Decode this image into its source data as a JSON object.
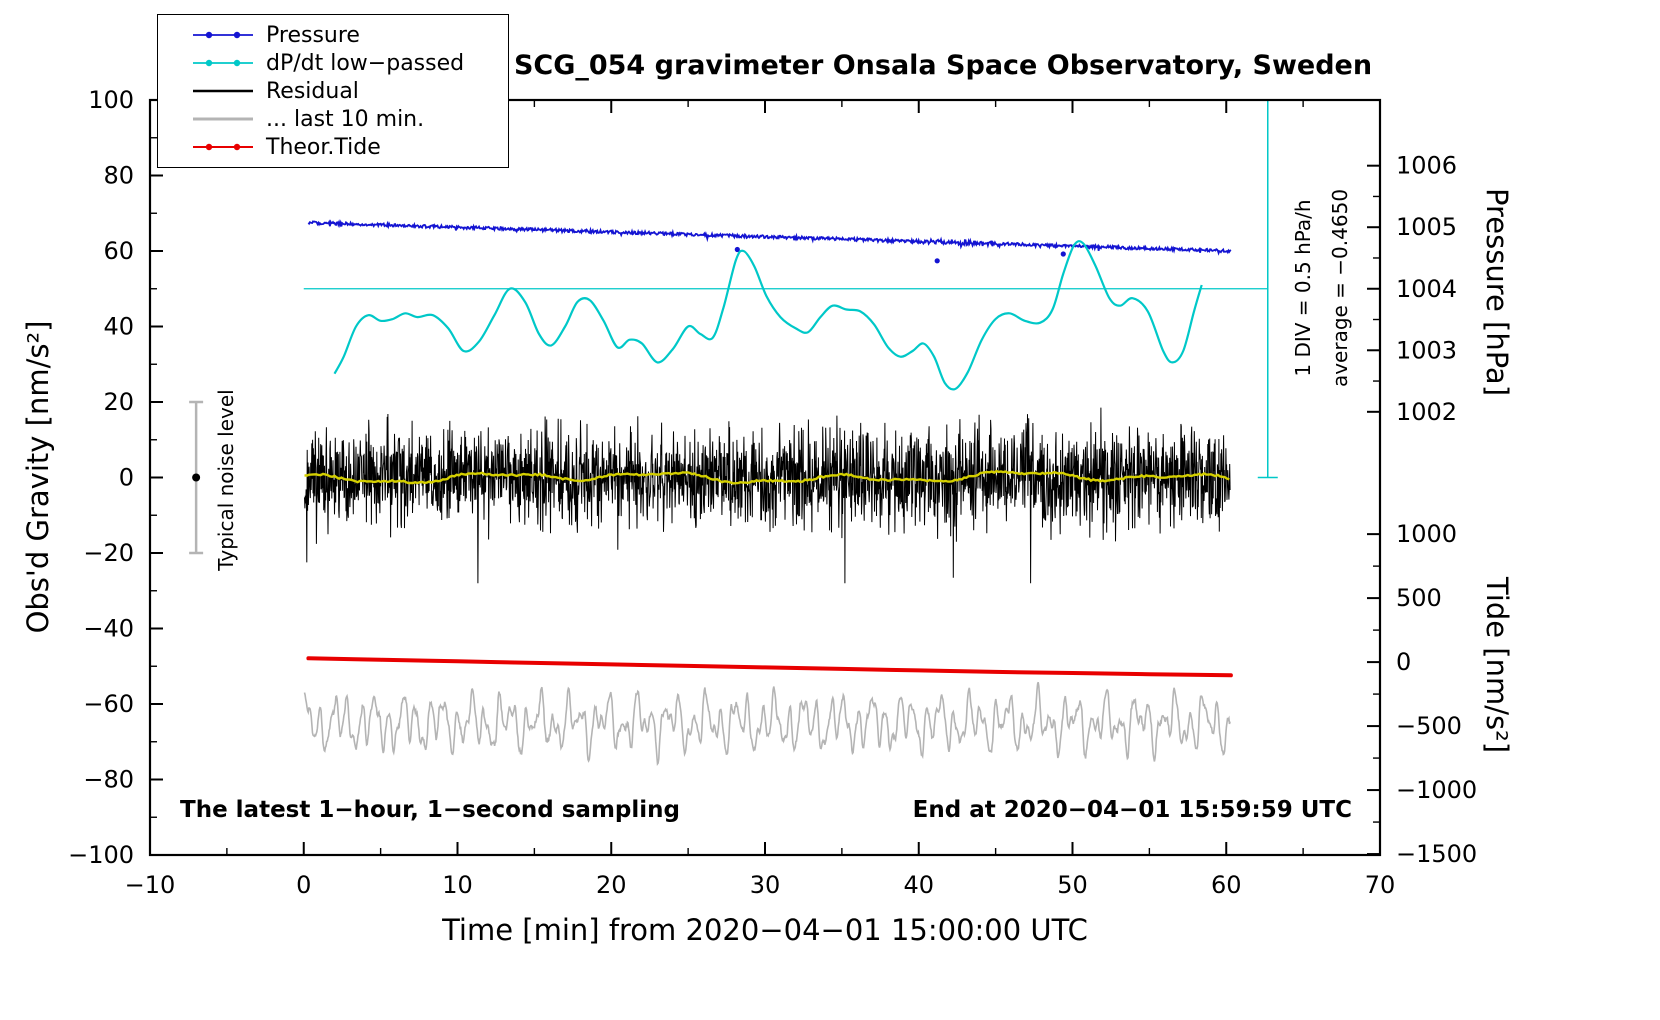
{
  "title": "SCG_054 gravimeter Onsala Space Observatory, Sweden",
  "notes": {
    "left": "The latest 1−hour, 1−second sampling",
    "right": "End at 2020−04−01 15:59:59 UTC"
  },
  "annotations": {
    "div": "1 DIV = 0.5 hPa/h",
    "average": "average = −0.4650",
    "noise": "Typical noise level"
  },
  "legend": [
    {
      "key": "pressure",
      "label": "Pressure",
      "color": "#1414d2",
      "width": 1.8,
      "dots": true
    },
    {
      "key": "dpdt",
      "label": "dP/dt low−passed",
      "color": "#00c8c8",
      "width": 1.8,
      "dots": true
    },
    {
      "key": "residual",
      "label": "Residual",
      "color": "#000000",
      "width": 2.6,
      "dots": false
    },
    {
      "key": "last10",
      "label": "... last 10 min.",
      "color": "#b4b4b4",
      "width": 3,
      "dots": false
    },
    {
      "key": "tide",
      "label": "Theor.Tide",
      "color": "#e80000",
      "width": 2,
      "dots": true
    }
  ],
  "chart_data": {
    "type": "line",
    "title": "SCG_054 gravimeter Onsala Space Observatory, Sweden",
    "seed": 20200401,
    "x_axis": {
      "label": "Time [min] from 2020−04−01 15:00:00 UTC",
      "range": [
        -10,
        70
      ],
      "major_ticks": [
        -10,
        0,
        10,
        20,
        30,
        40,
        50,
        60,
        70
      ],
      "minor_step": 5
    },
    "y_axis_left": {
      "label": "Obs'd Gravity [nm/s²]",
      "range": [
        -100,
        100
      ],
      "major_step": 20,
      "minor_step": 10
    },
    "y_axis_pressure": {
      "label": "Pressure [hPa]",
      "major_ticks": [
        1002,
        1003,
        1004,
        1005,
        1006
      ],
      "minor_ticks": [
        1002.5,
        1003.5,
        1004.5,
        1005.5
      ],
      "ref": {
        "value": 1004,
        "gravity": 50
      },
      "gravity_per_unit": 16.3
    },
    "y_axis_tide": {
      "label": "Tide [nm/s²]",
      "major_ticks": [
        -1500,
        -1000,
        -500,
        0,
        500,
        1000
      ],
      "minor_ticks": [
        -1250,
        -750,
        -250,
        250,
        750
      ],
      "ref": {
        "value": 0,
        "gravity": -48.9
      },
      "gravity_per_unit": 0.0339
    },
    "series": {
      "pressure": {
        "name": "Pressure",
        "color": "#1414d2",
        "t_range": [
          0.3,
          60.3
        ],
        "start_gravity": 67.5,
        "end_gravity": 60.0,
        "start_hPa": 1005.1,
        "end_hPa": 1004.6,
        "noise": 0.4,
        "outliers_t_gravity": [
          [
            28.2,
            60.4
          ],
          [
            41.2,
            57.4
          ],
          [
            49.4,
            59.2
          ]
        ]
      },
      "dpdt_lowpassed": {
        "name": "dP/dt low−passed",
        "color": "#00c8c8",
        "reference_gravity": 50,
        "average_hPa_per_h": -0.465,
        "div_hPa_per_h": 0.5,
        "scale_bar": {
          "t": 62.7,
          "gravity_top": 100,
          "gravity_bottom": 0
        },
        "points_t_gravity": [
          [
            2.0,
            27.5
          ],
          [
            2.6,
            32
          ],
          [
            3.4,
            40
          ],
          [
            4.2,
            43
          ],
          [
            5.0,
            41.5
          ],
          [
            5.8,
            42
          ],
          [
            6.6,
            43.5
          ],
          [
            7.4,
            42.5
          ],
          [
            8.4,
            43
          ],
          [
            9.4,
            39.5
          ],
          [
            10.4,
            33.5
          ],
          [
            11.4,
            36
          ],
          [
            12.4,
            43
          ],
          [
            13.4,
            50
          ],
          [
            14.4,
            46.5
          ],
          [
            15.3,
            38
          ],
          [
            16.1,
            35
          ],
          [
            17.0,
            40
          ],
          [
            17.8,
            46.5
          ],
          [
            18.6,
            47
          ],
          [
            19.5,
            41.5
          ],
          [
            20.4,
            34.5
          ],
          [
            21.2,
            36.5
          ],
          [
            22.0,
            35.5
          ],
          [
            23.0,
            30.5
          ],
          [
            24.0,
            34
          ],
          [
            25.0,
            40
          ],
          [
            25.8,
            38
          ],
          [
            26.6,
            37
          ],
          [
            27.3,
            45
          ],
          [
            28.1,
            57.5
          ],
          [
            28.6,
            60
          ],
          [
            29.3,
            56
          ],
          [
            30.1,
            48
          ],
          [
            31.0,
            42.5
          ],
          [
            32.0,
            39.5
          ],
          [
            32.8,
            38.5
          ],
          [
            33.6,
            42.5
          ],
          [
            34.4,
            45.5
          ],
          [
            35.3,
            44.5
          ],
          [
            36.2,
            44
          ],
          [
            37.1,
            40.5
          ],
          [
            38.0,
            34.5
          ],
          [
            38.8,
            32
          ],
          [
            39.6,
            33.5
          ],
          [
            40.3,
            35.5
          ],
          [
            41.0,
            32
          ],
          [
            41.7,
            25
          ],
          [
            42.4,
            23.5
          ],
          [
            43.2,
            28
          ],
          [
            44.1,
            36.5
          ],
          [
            45.0,
            42
          ],
          [
            45.9,
            43.5
          ],
          [
            46.9,
            41.5
          ],
          [
            47.9,
            41
          ],
          [
            48.7,
            44.5
          ],
          [
            49.4,
            54
          ],
          [
            50.1,
            61.5
          ],
          [
            50.7,
            62
          ],
          [
            51.5,
            56
          ],
          [
            52.4,
            47.5
          ],
          [
            53.1,
            45.5
          ],
          [
            53.9,
            47.5
          ],
          [
            54.9,
            44
          ],
          [
            55.9,
            33.5
          ],
          [
            56.5,
            30.5
          ],
          [
            57.2,
            33.5
          ],
          [
            57.9,
            44
          ],
          [
            58.4,
            51
          ]
        ]
      },
      "residual": {
        "name": "Residual",
        "color": "#000000",
        "t_range": [
          0.05,
          60.25
        ],
        "mean": 0,
        "sigma": 6.5,
        "spike_prob": 0.012,
        "max_abs": 28,
        "smooth_color": "#d4cf00",
        "smooth_amplitude": 1.5
      },
      "residual_last10": {
        "name": "... last 10 min.",
        "color": "#b4b4b4",
        "t_range": [
          0.05,
          60.25
        ],
        "center_gravity": -65,
        "amplitude": 10
      },
      "theor_tide": {
        "name": "Theor.Tide",
        "color": "#e80000",
        "points_t_gravity": [
          [
            0.3,
            -47.9
          ],
          [
            5,
            -48.3
          ],
          [
            10,
            -48.7
          ],
          [
            15,
            -49.1
          ],
          [
            20,
            -49.5
          ],
          [
            25,
            -49.9
          ],
          [
            30,
            -50.3
          ],
          [
            35,
            -50.7
          ],
          [
            40,
            -51.1
          ],
          [
            45,
            -51.5
          ],
          [
            50,
            -51.8
          ],
          [
            55,
            -52.1
          ],
          [
            60.3,
            -52.4
          ]
        ]
      },
      "noise_level": {
        "label": "Typical noise level",
        "t": -7,
        "gravity": 0,
        "half_range": 20,
        "bar_color": "#b4b4b4",
        "dot_color": "#000000"
      }
    }
  }
}
